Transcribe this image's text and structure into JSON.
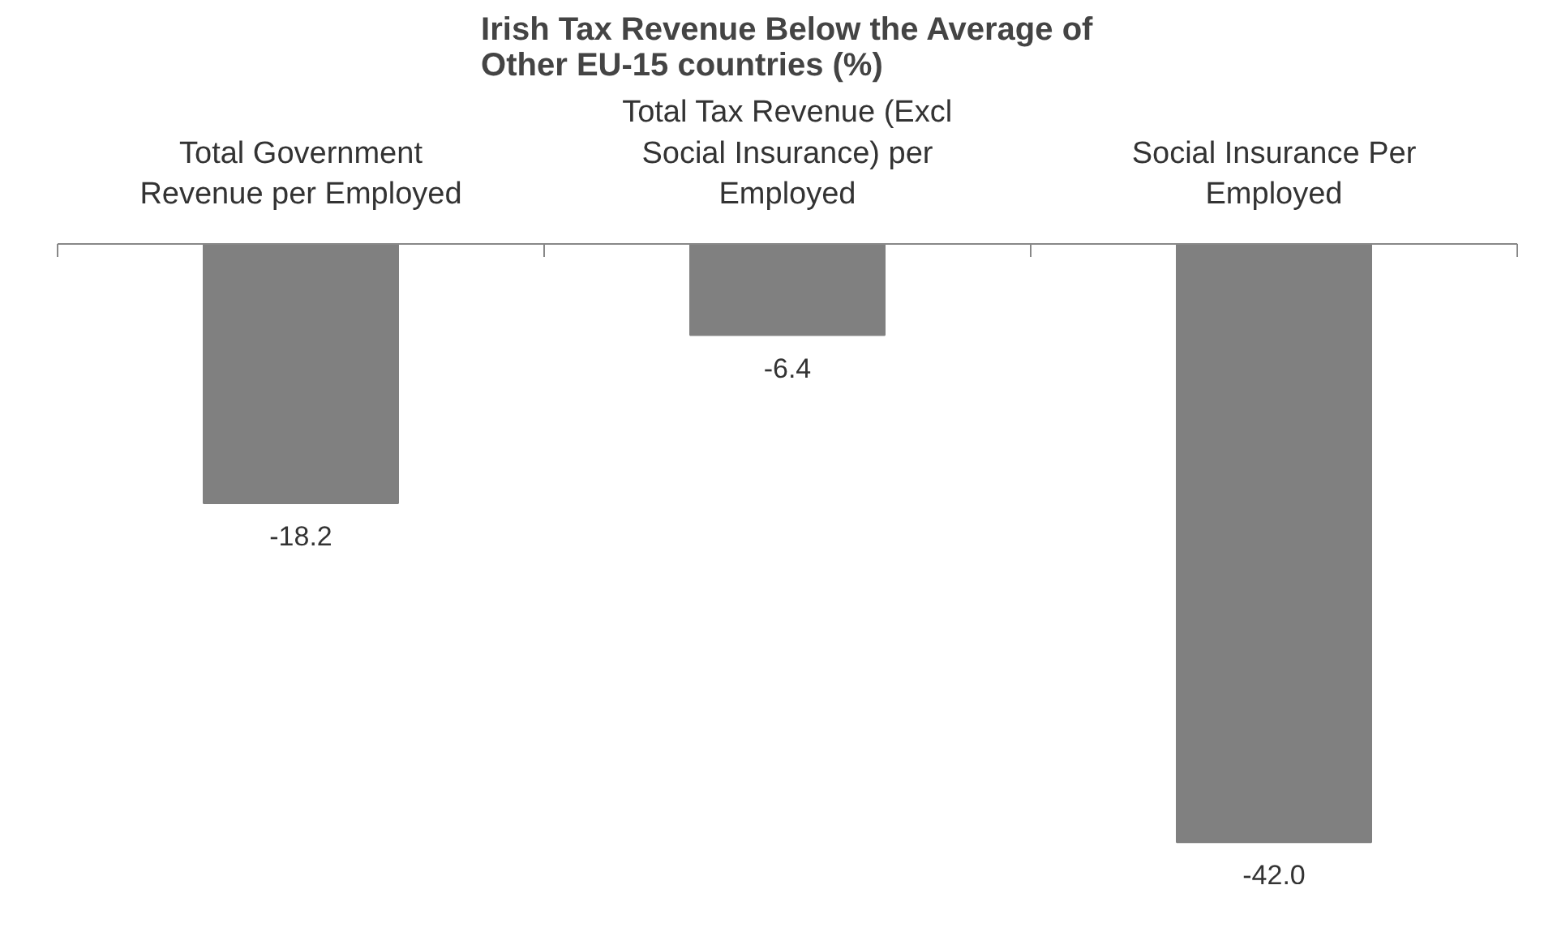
{
  "chart_data": {
    "type": "bar",
    "title": "Irish Tax Revenue Below the Average of Other EU-15 countries (%)",
    "categories": [
      "Total Government Revenue per Employed",
      "Total Tax Revenue (Excl Social Insurance) per Employed",
      "Social Insurance Per Employed"
    ],
    "values": [
      -18.2,
      -6.4,
      -42.0
    ],
    "value_labels": [
      "-18.2",
      "-6.4",
      "-42.0"
    ],
    "color": "#808080",
    "tick_labels": "x"
  }
}
